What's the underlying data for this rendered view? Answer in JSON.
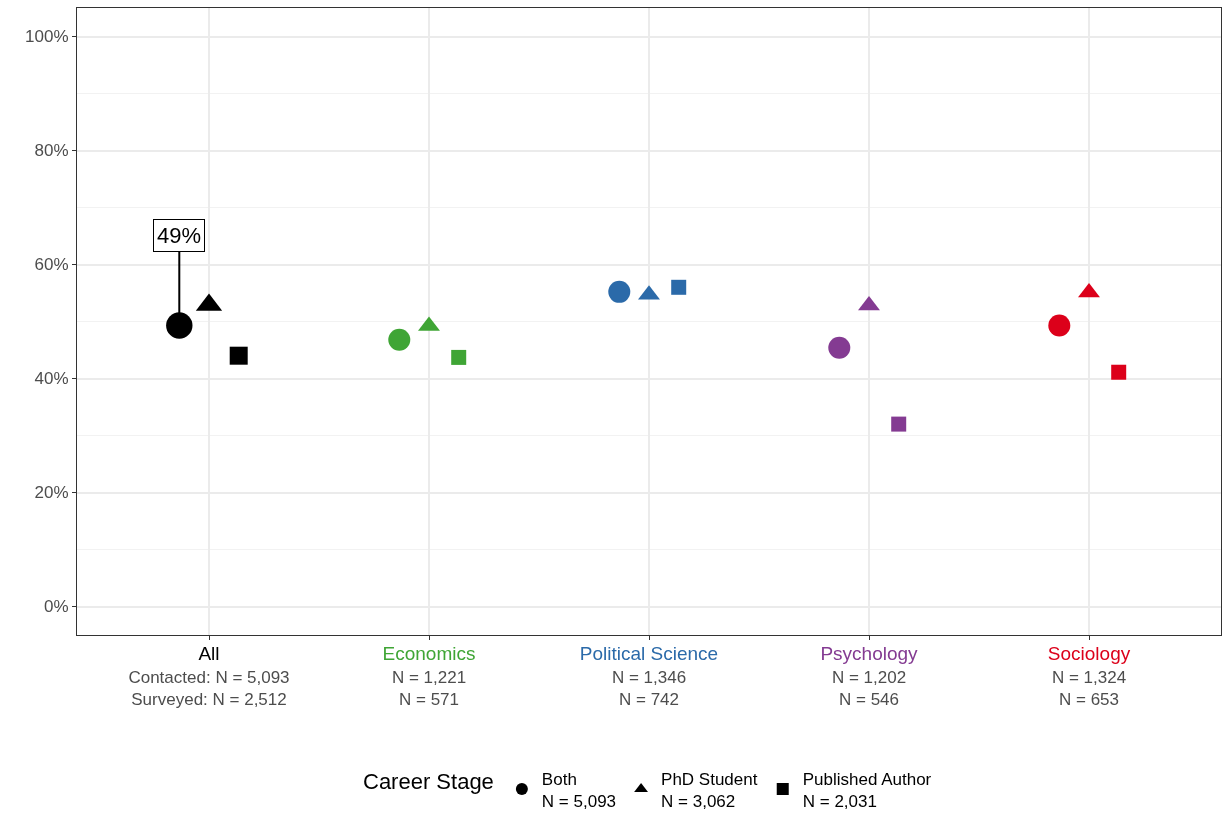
{
  "chart_data": {
    "type": "scatter",
    "categories": [
      "All\nContacted: N = 5,093\nSurveyed: N = 2,512",
      "Economics\nN = 1,221\nN = 571",
      "Political Science\nN = 1,346\nN = 742",
      "Psychology\nN = 1,202\nN = 546",
      "Sociology\nN = 1,324\nN = 653"
    ],
    "series": [
      {
        "name": "Both\nN = 5,093",
        "marker": "circle",
        "colors": [
          "#000000",
          "#3fa535",
          "#2b6aa9",
          "#843b92",
          "#dc001a"
        ],
        "values": [
          49.3,
          46.8,
          55.2,
          45.4,
          49.3
        ]
      },
      {
        "name": "PhD Student\nN = 3,062",
        "marker": "triangle",
        "colors": [
          "#000000",
          "#3fa535",
          "#2b6aa9",
          "#843b92",
          "#dc001a"
        ],
        "values": [
          52.9,
          49.2,
          54.7,
          52.8,
          55.1
        ]
      },
      {
        "name": "Published Author\nN = 2,031",
        "marker": "square",
        "colors": [
          "#000000",
          "#3fa535",
          "#2b6aa9",
          "#843b92",
          "#dc001a"
        ],
        "values": [
          44.0,
          43.7,
          56.0,
          32.0,
          41.1
        ]
      }
    ],
    "legend_title": "Career Stage",
    "legend": "bottom",
    "annotations": [
      {
        "text": "49%",
        "y": 49.3
      }
    ],
    "ylim": [
      -5,
      105
    ],
    "yticks": [
      {
        "value": 0,
        "label": "0%"
      },
      {
        "value": 20,
        "label": "20%"
      },
      {
        "value": 40,
        "label": "40%"
      },
      {
        "value": 60,
        "label": "60%"
      },
      {
        "value": 80,
        "label": "80%"
      },
      {
        "value": 100,
        "label": "100%"
      }
    ],
    "grid": true
  }
}
